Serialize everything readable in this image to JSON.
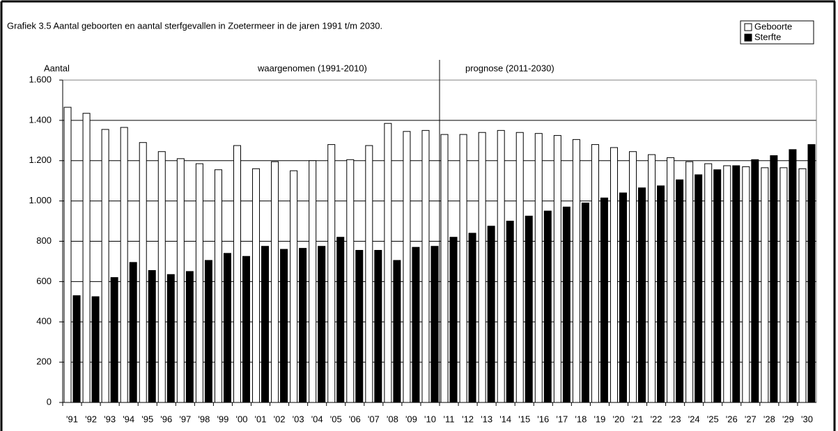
{
  "chart_data": {
    "type": "bar",
    "title": "Grafiek 3.5  Aantal geboorten  en aantal sterfgevallen  in Zoetermeer  in de jaren  1991  t/m  2030.",
    "y_label": "Aantal",
    "annotations": [
      "waargenomen  (1991-2010)",
      "prognose  (2011-2030)"
    ],
    "categories": [
      "'91",
      "'92",
      "'93",
      "'94",
      "'95",
      "'96",
      "'97",
      "'98",
      "'99",
      "'00",
      "'01",
      "'02",
      "'03",
      "'04",
      "'05",
      "'06",
      "'07",
      "'08",
      "'09",
      "'10",
      "'11",
      "'12",
      "'13",
      "'14",
      "'15",
      "'16",
      "'17",
      "'18",
      "'19",
      "'20",
      "'21",
      "'22",
      "'23",
      "'24",
      "'25",
      "'26",
      "'27",
      "'28",
      "'29",
      "'30"
    ],
    "series": [
      {
        "name": "Geboorte",
        "color": "#ffffff",
        "values": [
          1465,
          1435,
          1355,
          1365,
          1290,
          1245,
          1210,
          1185,
          1155,
          1275,
          1160,
          1195,
          1150,
          1200,
          1280,
          1205,
          1275,
          1385,
          1345,
          1350,
          1330,
          1330,
          1340,
          1350,
          1340,
          1335,
          1325,
          1305,
          1280,
          1265,
          1245,
          1230,
          1215,
          1195,
          1185,
          1175,
          1170,
          1165,
          1165,
          1160
        ]
      },
      {
        "name": "Sterfte",
        "color": "#000000",
        "values": [
          530,
          525,
          620,
          695,
          655,
          635,
          650,
          705,
          740,
          725,
          775,
          760,
          765,
          775,
          820,
          755,
          755,
          705,
          770,
          775,
          820,
          840,
          875,
          900,
          925,
          950,
          970,
          990,
          1015,
          1040,
          1065,
          1075,
          1105,
          1130,
          1155,
          1175,
          1205,
          1225,
          1255,
          1280
        ]
      }
    ],
    "ylim": [
      0,
      1600
    ],
    "yticks": [
      0,
      200,
      400,
      600,
      800,
      {
        "value": 1000,
        "label": "1.000"
      },
      {
        "value": 1200,
        "label": "1.200"
      },
      {
        "value": 1400,
        "label": "1.400"
      },
      {
        "value": 1600,
        "label": "1.600"
      }
    ],
    "grid": true
  }
}
